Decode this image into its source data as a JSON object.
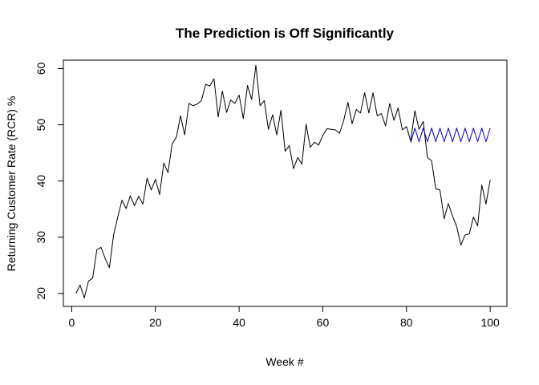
{
  "chart_data": {
    "type": "line",
    "title": "The Prediction is Off Significantly",
    "xlabel": "Week #",
    "ylabel": "Returning Customer Rate (RCR) %",
    "xlim": [
      -2,
      104
    ],
    "ylim": [
      17.7,
      61.5
    ],
    "xticks": [
      0,
      20,
      40,
      60,
      80,
      100
    ],
    "yticks": [
      20,
      30,
      40,
      50,
      60
    ],
    "grid": false,
    "legend": "none",
    "series": [
      {
        "color": "#000000",
        "x": [
          1,
          2,
          3,
          4,
          5,
          6,
          7,
          8,
          9,
          10,
          11,
          12,
          13,
          14,
          15,
          16,
          17,
          18,
          19,
          20,
          21,
          22,
          23,
          24,
          25,
          26,
          27,
          28,
          29,
          30,
          31,
          32,
          33,
          34,
          35,
          36,
          37,
          38,
          39,
          40,
          41,
          42,
          43,
          44,
          45,
          46,
          47,
          48,
          49,
          50,
          51,
          52,
          53,
          54,
          55,
          56,
          57,
          58,
          59,
          60,
          61,
          62,
          63,
          64,
          65,
          66,
          67,
          68,
          69,
          70,
          71,
          72,
          73,
          74,
          75,
          76,
          77,
          78,
          79,
          80,
          81,
          82,
          83,
          84,
          85,
          86,
          87,
          88,
          89,
          90,
          91,
          92,
          93,
          94,
          95,
          96,
          97,
          98,
          99,
          100
        ],
        "values": [
          20.0,
          21.5,
          19.2,
          22.2,
          22.7,
          27.8,
          28.2,
          26.2,
          24.6,
          30.4,
          33.6,
          36.6,
          35.1,
          37.4,
          35.6,
          37.3,
          35.9,
          40.5,
          38.4,
          40.3,
          37.6,
          43.2,
          41.5,
          46.6,
          47.8,
          51.6,
          48.2,
          53.8,
          53.4,
          53.7,
          54.3,
          57.2,
          56.9,
          58.2,
          51.4,
          56.0,
          52.2,
          54.4,
          53.8,
          55.3,
          51.1,
          57.0,
          54.5,
          60.6,
          53.4,
          54.3,
          49.2,
          51.8,
          48.2,
          52.6,
          45.3,
          46.3,
          42.2,
          44.2,
          43.0,
          50.1,
          46.0,
          46.9,
          46.4,
          48.1,
          49.3,
          49.2,
          49.1,
          48.5,
          50.8,
          54.0,
          50.2,
          52.7,
          52.1,
          55.7,
          52.1,
          55.7,
          51.6,
          52.0,
          49.8,
          53.8,
          50.8,
          53.0,
          49.1,
          49.7,
          47.1,
          52.5,
          49.2,
          50.6,
          44.2,
          43.6,
          38.6,
          38.4,
          33.3,
          36.0,
          33.8,
          31.9,
          28.6,
          30.4,
          30.6,
          33.6,
          32.0,
          39.3,
          35.9,
          40.2
        ]
      },
      {
        "color": "#0000cd",
        "x": [
          81,
          82,
          83,
          84,
          85,
          86,
          87,
          88,
          89,
          90,
          91,
          92,
          93,
          94,
          95,
          96,
          97,
          98,
          99,
          100
        ],
        "values": [
          46.8,
          49.4,
          47.0,
          49.4,
          47.0,
          49.4,
          47.0,
          49.4,
          47.0,
          49.4,
          47.0,
          49.4,
          47.0,
          49.4,
          47.0,
          49.4,
          47.0,
          49.4,
          47.0,
          49.4
        ]
      }
    ]
  }
}
